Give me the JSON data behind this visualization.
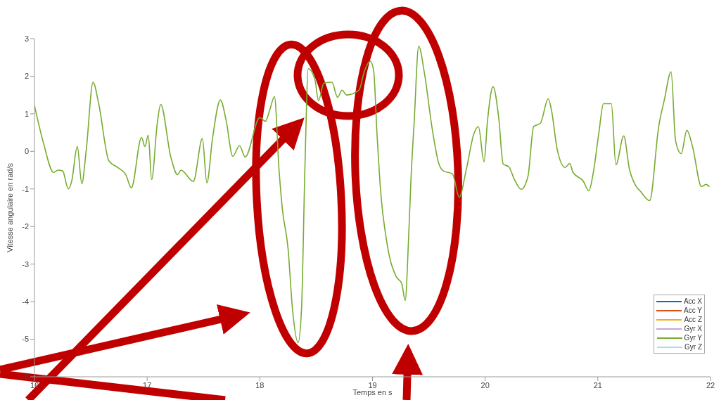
{
  "chart_data": {
    "type": "line",
    "xlabel": "Temps en s",
    "ylabel": "Vitesse angulaire en rad/s",
    "xlim": [
      16,
      22
    ],
    "xticks": [
      16,
      17,
      18,
      19,
      20,
      21,
      22
    ],
    "ylim": [
      -6,
      3
    ],
    "yticks": [
      -6,
      -5,
      -4,
      -3,
      -2,
      -1,
      0,
      1,
      2,
      3
    ],
    "legend": "bottom right",
    "marker": "none",
    "line_style": "solid",
    "x": [
      16.0,
      16.08,
      16.17,
      16.21,
      16.25,
      16.3,
      16.33,
      16.38,
      16.42,
      16.46,
      16.52,
      16.57,
      16.66,
      16.74,
      16.81,
      16.86,
      16.95,
      16.98,
      17.01,
      17.04,
      17.09,
      17.12,
      17.21,
      17.27,
      17.3,
      17.41,
      17.49,
      17.53,
      17.58,
      17.65,
      17.7,
      17.76,
      17.82,
      17.87,
      18.0,
      18.05,
      18.09,
      18.13,
      18.17,
      18.2,
      18.25,
      18.29,
      18.34,
      18.37,
      18.4,
      18.43,
      18.49,
      18.52,
      18.57,
      18.64,
      18.69,
      18.73,
      18.77,
      18.88,
      18.93,
      18.98,
      19.01,
      19.04,
      19.07,
      19.13,
      19.21,
      19.26,
      19.29,
      19.32,
      19.34,
      19.37,
      19.41,
      19.46,
      19.53,
      19.59,
      19.63,
      19.71,
      19.77,
      19.83,
      19.9,
      19.94,
      19.99,
      20.02,
      20.07,
      20.12,
      20.16,
      20.21,
      20.26,
      20.32,
      20.38,
      20.43,
      20.49,
      20.56,
      20.59,
      20.64,
      20.71,
      20.75,
      20.78,
      20.87,
      20.92,
      20.96,
      21.01,
      21.05,
      21.12,
      21.16,
      21.23,
      21.28,
      21.33,
      21.38,
      21.46,
      21.54,
      21.59,
      21.65,
      21.69,
      21.74,
      21.79,
      21.84,
      21.92,
      21.96,
      21.99
    ],
    "series": [
      {
        "name": "Acc X",
        "color": "#0072bd",
        "values": [
          null,
          null,
          null,
          null,
          null,
          null,
          null,
          null,
          null,
          null,
          null,
          null,
          null,
          null,
          null,
          null,
          null,
          null,
          null,
          null,
          null,
          null,
          null,
          null,
          null,
          null,
          null,
          null,
          null,
          null,
          null,
          null,
          null,
          null,
          null,
          null,
          null,
          null,
          null,
          null,
          null,
          null,
          null,
          null,
          null,
          null,
          null,
          null,
          null,
          null,
          null,
          null,
          null,
          null,
          null,
          null,
          null,
          null,
          null,
          null,
          null,
          null,
          null,
          null,
          null,
          null,
          null,
          null,
          null,
          null,
          null,
          null,
          null,
          null,
          null,
          null,
          null,
          null,
          null,
          null,
          null,
          null,
          null,
          null,
          null,
          null,
          null,
          null,
          null,
          null,
          null,
          null,
          null,
          null,
          null,
          null,
          null,
          null,
          null,
          null,
          null,
          null,
          null,
          null,
          null,
          null,
          null,
          null,
          null,
          null,
          null,
          null,
          null,
          null,
          null
        ]
      },
      {
        "name": "Acc Y",
        "color": "#d95319",
        "values": [
          null,
          null,
          null,
          null,
          null,
          null,
          null,
          null,
          null,
          null,
          null,
          null,
          null,
          null,
          null,
          null,
          null,
          null,
          null,
          null,
          null,
          null,
          null,
          null,
          null,
          null,
          null,
          null,
          null,
          null,
          null,
          null,
          null,
          null,
          null,
          null,
          null,
          null,
          null,
          null,
          null,
          null,
          null,
          null,
          null,
          null,
          null,
          null,
          null,
          null,
          null,
          null,
          null,
          null,
          null,
          null,
          null,
          null,
          null,
          null,
          null,
          null,
          null,
          null,
          null,
          null,
          null,
          null,
          null,
          null,
          null,
          null,
          null,
          null,
          null,
          null,
          null,
          null,
          null,
          null,
          null,
          null,
          null,
          null,
          null,
          null,
          null,
          null,
          null,
          null,
          null,
          null,
          null,
          null,
          null,
          null,
          null,
          null,
          null,
          null,
          null,
          null,
          null,
          null,
          null,
          null,
          null,
          null,
          null,
          null,
          null,
          null,
          null,
          null,
          null
        ]
      },
      {
        "name": "Acc Z",
        "color": "#edb120",
        "values": [
          null,
          null,
          null,
          null,
          null,
          null,
          null,
          null,
          null,
          null,
          null,
          null,
          null,
          null,
          null,
          null,
          null,
          null,
          null,
          null,
          null,
          null,
          null,
          null,
          null,
          null,
          null,
          null,
          null,
          null,
          null,
          null,
          null,
          null,
          null,
          null,
          null,
          null,
          null,
          null,
          null,
          null,
          null,
          null,
          null,
          null,
          null,
          null,
          null,
          null,
          null,
          null,
          null,
          null,
          null,
          null,
          null,
          null,
          null,
          null,
          null,
          null,
          null,
          null,
          null,
          null,
          null,
          null,
          null,
          null,
          null,
          null,
          null,
          null,
          null,
          null,
          null,
          null,
          null,
          null,
          null,
          null,
          null,
          null,
          null,
          null,
          null,
          null,
          null,
          null,
          null,
          null,
          null,
          null,
          null,
          null,
          null,
          null,
          null,
          null,
          null,
          null,
          null,
          null,
          null,
          null,
          null,
          null,
          null,
          null,
          null,
          null,
          null,
          null,
          null
        ]
      },
      {
        "name": "Gyr X",
        "color": "#c9a7d6",
        "values": [
          null,
          null,
          null,
          null,
          null,
          null,
          null,
          null,
          null,
          null,
          null,
          null,
          null,
          null,
          null,
          null,
          null,
          null,
          null,
          null,
          null,
          null,
          null,
          null,
          null,
          null,
          null,
          null,
          null,
          null,
          null,
          null,
          null,
          null,
          null,
          null,
          null,
          null,
          null,
          null,
          null,
          null,
          null,
          null,
          null,
          null,
          null,
          null,
          null,
          null,
          null,
          null,
          null,
          null,
          null,
          null,
          null,
          null,
          null,
          null,
          null,
          null,
          null,
          null,
          null,
          null,
          null,
          null,
          null,
          null,
          null,
          null,
          null,
          null,
          null,
          null,
          null,
          null,
          null,
          null,
          null,
          null,
          null,
          null,
          null,
          null,
          null,
          null,
          null,
          null,
          null,
          null,
          null,
          null,
          null,
          null,
          null,
          null,
          null,
          null,
          null,
          null,
          null,
          null,
          null,
          null,
          null,
          null,
          null,
          null,
          null,
          null,
          null,
          null,
          null
        ]
      },
      {
        "name": "Gyr Y",
        "color": "#77ac30",
        "values": [
          1.22,
          0.22,
          -0.56,
          -0.5,
          -0.52,
          -1.0,
          -0.8,
          0.13,
          -0.86,
          0.05,
          1.84,
          1.27,
          -0.25,
          -0.43,
          -0.62,
          -0.97,
          0.37,
          0.13,
          0.43,
          -0.75,
          0.75,
          1.25,
          -0.15,
          -0.62,
          -0.5,
          -0.8,
          0.34,
          -0.84,
          0.34,
          1.37,
          0.84,
          -0.13,
          0.15,
          -0.15,
          0.9,
          0.8,
          1.12,
          1.46,
          -0.47,
          -1.53,
          -2.57,
          -4.2,
          -5.09,
          -4.2,
          -0.47,
          2.2,
          1.9,
          1.35,
          1.82,
          1.84,
          1.44,
          1.63,
          1.5,
          1.63,
          2.15,
          2.4,
          2.15,
          0.47,
          -0.97,
          -2.47,
          -3.33,
          -3.52,
          -3.97,
          -2.34,
          -0.84,
          0.79,
          2.8,
          2.1,
          0.6,
          -0.34,
          -0.52,
          -0.6,
          -1.22,
          -0.52,
          0.47,
          0.66,
          -0.28,
          0.79,
          1.72,
          0.9,
          -0.34,
          -0.41,
          -0.75,
          -1.01,
          -0.66,
          0.66,
          0.75,
          1.4,
          1.07,
          0.04,
          -0.43,
          -0.32,
          -0.56,
          -0.79,
          -1.05,
          -0.56,
          0.52,
          1.27,
          1.27,
          -0.36,
          0.41,
          -0.47,
          -0.88,
          -1.07,
          -1.31,
          0.66,
          1.37,
          2.12,
          0.28,
          -0.06,
          0.56,
          0.13,
          -0.94,
          -0.88,
          -0.94
        ]
      },
      {
        "name": "Gyr Z",
        "color": "#a8dcef",
        "values": [
          null,
          null,
          null,
          null,
          null,
          null,
          null,
          null,
          null,
          null,
          null,
          null,
          null,
          null,
          null,
          null,
          null,
          null,
          null,
          null,
          null,
          null,
          null,
          null,
          null,
          null,
          null,
          null,
          null,
          null,
          null,
          null,
          null,
          null,
          null,
          null,
          null,
          null,
          null,
          null,
          null,
          null,
          null,
          null,
          null,
          null,
          null,
          null,
          null,
          null,
          null,
          null,
          null,
          null,
          null,
          null,
          null,
          null,
          null,
          null,
          null,
          null,
          null,
          null,
          null,
          null,
          null,
          null,
          null,
          null,
          null,
          null,
          null,
          null,
          null,
          null,
          null,
          null,
          null,
          null,
          null,
          null,
          null,
          null,
          null,
          null,
          null,
          null,
          null,
          null,
          null,
          null,
          null,
          null,
          null,
          null,
          null,
          null,
          null,
          null,
          null,
          null,
          null,
          null,
          null,
          null,
          null,
          null,
          null,
          null,
          null,
          null,
          null,
          null,
          null
        ]
      }
    ]
  }
}
